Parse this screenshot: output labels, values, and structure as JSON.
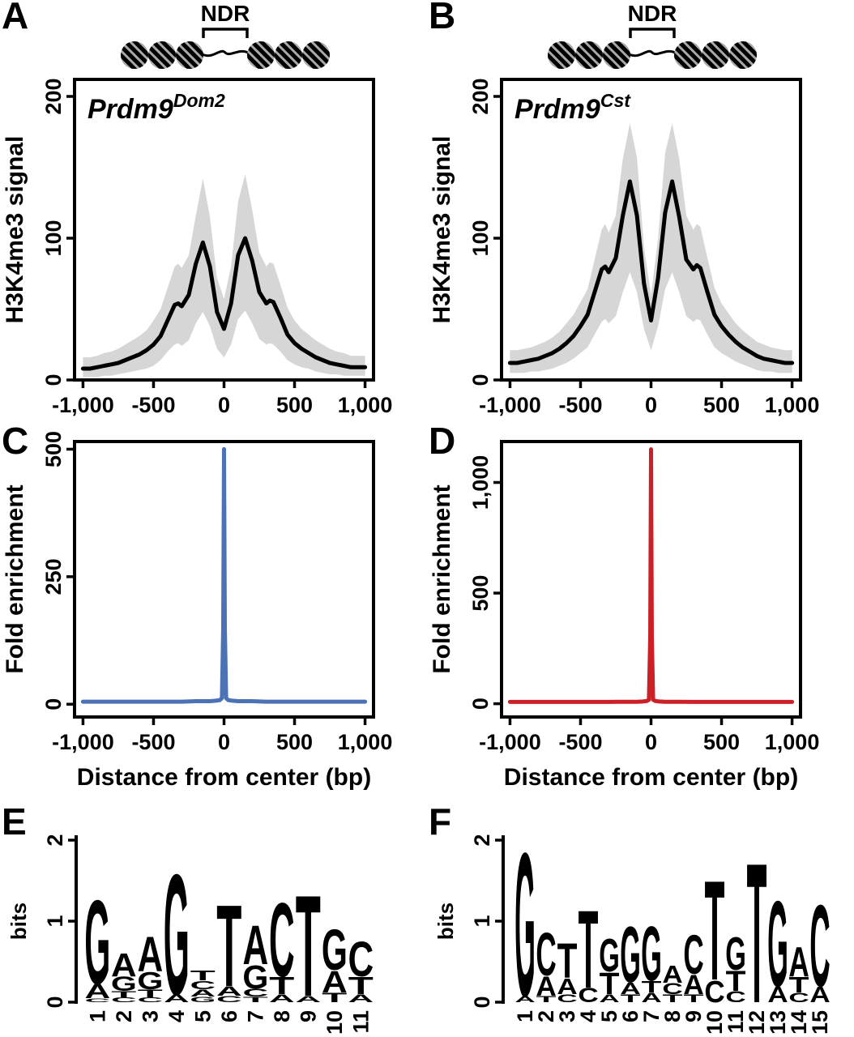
{
  "figure": {
    "panels": {
      "A": "A",
      "B": "B",
      "C": "C",
      "D": "D",
      "E": "E",
      "F": "F"
    },
    "ndr_label": "NDR"
  },
  "logo_colors": {
    "A": "#b3262a",
    "C": "#283c8f",
    "G": "#e9a63a",
    "T": "#3d8a41"
  },
  "chart_data": [
    {
      "panel": "A",
      "type": "line",
      "label": {
        "text": "Prdm9",
        "superscript": "Dom2",
        "color": "#4a72b4"
      },
      "ylabel": "H3K4me3 signal",
      "xlabel": "",
      "xlim": [
        -1060,
        1060
      ],
      "ylim": [
        0,
        212
      ],
      "xticks": [
        -1000,
        -500,
        0,
        500,
        1000
      ],
      "xtick_labels": [
        "-1,000",
        "-500",
        "0",
        "500",
        "1,000"
      ],
      "yticks": [
        0,
        100,
        200
      ],
      "ytick_labels": [
        "0",
        "100",
        "200"
      ],
      "line_color": "#000000",
      "band_color": "#d6d6d6",
      "x": [
        -1000,
        -950,
        -900,
        -850,
        -800,
        -750,
        -700,
        -650,
        -600,
        -550,
        -500,
        -450,
        -400,
        -350,
        -325,
        -300,
        -250,
        -200,
        -150,
        -100,
        -50,
        0,
        50,
        100,
        150,
        200,
        250,
        300,
        325,
        350,
        400,
        450,
        500,
        550,
        600,
        650,
        700,
        750,
        800,
        850,
        900,
        950,
        1000
      ],
      "mean": [
        8,
        8,
        9,
        10,
        11,
        12,
        14,
        16,
        18,
        21,
        25,
        31,
        42,
        53,
        54,
        52,
        60,
        82,
        97,
        80,
        48,
        36,
        54,
        88,
        100,
        84,
        62,
        54,
        56,
        55,
        44,
        32,
        26,
        22,
        19,
        16,
        14,
        12,
        11,
        10,
        9,
        9,
        9
      ],
      "upper": [
        16,
        16,
        17,
        19,
        20,
        22,
        25,
        28,
        31,
        35,
        42,
        50,
        65,
        80,
        82,
        79,
        88,
        116,
        142,
        115,
        72,
        57,
        80,
        126,
        145,
        120,
        90,
        80,
        83,
        82,
        67,
        51,
        42,
        36,
        32,
        28,
        25,
        22,
        20,
        19,
        17,
        17,
        17
      ],
      "lower": [
        2,
        2,
        2,
        3,
        3,
        4,
        5,
        6,
        7,
        8,
        10,
        14,
        20,
        25,
        26,
        24,
        28,
        40,
        48,
        38,
        22,
        16,
        25,
        43,
        49,
        40,
        29,
        25,
        26,
        25,
        20,
        14,
        11,
        9,
        8,
        6,
        5,
        4,
        4,
        3,
        3,
        3,
        3
      ]
    },
    {
      "panel": "B",
      "type": "line",
      "label": {
        "text": "Prdm9",
        "superscript": "Cst",
        "color": "#cc2027"
      },
      "ylabel": "H3K4me3 signal",
      "xlabel": "",
      "xlim": [
        -1060,
        1060
      ],
      "ylim": [
        0,
        212
      ],
      "xticks": [
        -1000,
        -500,
        0,
        500,
        1000
      ],
      "xtick_labels": [
        "-1,000",
        "-500",
        "0",
        "500",
        "1,000"
      ],
      "yticks": [
        0,
        100,
        200
      ],
      "ytick_labels": [
        "0",
        "100",
        "200"
      ],
      "line_color": "#000000",
      "band_color": "#d6d6d6",
      "x": [
        -1000,
        -950,
        -900,
        -850,
        -800,
        -750,
        -700,
        -650,
        -600,
        -550,
        -500,
        -450,
        -400,
        -350,
        -325,
        -300,
        -250,
        -200,
        -150,
        -100,
        -50,
        0,
        50,
        100,
        150,
        200,
        250,
        300,
        325,
        350,
        400,
        450,
        500,
        550,
        600,
        650,
        700,
        750,
        800,
        850,
        900,
        950,
        1000
      ],
      "mean": [
        12,
        12,
        13,
        14,
        15,
        17,
        19,
        22,
        26,
        31,
        38,
        46,
        62,
        78,
        80,
        76,
        86,
        116,
        140,
        116,
        68,
        42,
        72,
        118,
        140,
        115,
        85,
        78,
        81,
        79,
        62,
        46,
        38,
        32,
        27,
        23,
        20,
        17,
        15,
        14,
        13,
        12,
        12
      ],
      "upper": [
        21,
        21,
        22,
        23,
        25,
        27,
        30,
        34,
        40,
        46,
        55,
        64,
        85,
        106,
        110,
        104,
        116,
        156,
        181,
        157,
        94,
        60,
        100,
        160,
        181,
        156,
        116,
        106,
        110,
        108,
        86,
        65,
        54,
        47,
        40,
        35,
        31,
        27,
        25,
        23,
        22,
        21,
        21
      ],
      "lower": [
        5,
        5,
        5,
        6,
        6,
        7,
        8,
        10,
        12,
        15,
        19,
        23,
        32,
        41,
        43,
        40,
        45,
        62,
        76,
        62,
        36,
        21,
        38,
        64,
        76,
        62,
        45,
        41,
        43,
        42,
        32,
        23,
        19,
        16,
        13,
        11,
        9,
        7,
        6,
        6,
        5,
        5,
        5
      ]
    },
    {
      "panel": "C",
      "type": "line",
      "ylabel": "Fold enrichment",
      "xlabel": "Distance from center  (bp)",
      "xlim": [
        -1060,
        1060
      ],
      "ylim": [
        -25,
        515
      ],
      "xticks": [
        -1000,
        -500,
        0,
        500,
        1000
      ],
      "xtick_labels": [
        "-1,000",
        "-500",
        "0",
        "500",
        "1,000"
      ],
      "yticks": [
        0,
        250,
        500
      ],
      "ytick_labels": [
        "0",
        "250",
        "500"
      ],
      "line_color": "#4a72b4",
      "x": [
        -1000,
        -900,
        -800,
        -700,
        -600,
        -500,
        -400,
        -300,
        -200,
        -150,
        -100,
        -60,
        -30,
        -15,
        -6,
        0,
        6,
        15,
        30,
        60,
        100,
        150,
        200,
        300,
        400,
        500,
        600,
        700,
        800,
        900,
        1000
      ],
      "mean": [
        5,
        5,
        5,
        5,
        5,
        5,
        5,
        5,
        6,
        6,
        6,
        7,
        8,
        12,
        150,
        500,
        150,
        12,
        8,
        7,
        6,
        6,
        6,
        5,
        5,
        5,
        5,
        5,
        5,
        5,
        5
      ]
    },
    {
      "panel": "D",
      "type": "line",
      "ylabel": "Fold enrichment",
      "xlabel": "Distance from center (bp)",
      "xlim": [
        -1060,
        1060
      ],
      "ylim": [
        -60,
        1185
      ],
      "xticks": [
        -1000,
        -500,
        0,
        500,
        1000
      ],
      "xtick_labels": [
        "-1,000",
        "-500",
        "0",
        "500",
        "1,000"
      ],
      "yticks": [
        0,
        500,
        1000
      ],
      "ytick_labels": [
        "0",
        "500",
        "1,000"
      ],
      "line_color": "#cc2027",
      "x": [
        -1000,
        -900,
        -800,
        -700,
        -600,
        -500,
        -400,
        -300,
        -200,
        -150,
        -100,
        -60,
        -30,
        -15,
        -6,
        0,
        6,
        15,
        30,
        60,
        100,
        150,
        200,
        300,
        400,
        500,
        600,
        700,
        800,
        900,
        1000
      ],
      "mean": [
        8,
        8,
        8,
        8,
        8,
        8,
        8,
        8,
        9,
        9,
        9,
        10,
        12,
        18,
        300,
        1150,
        300,
        18,
        12,
        10,
        9,
        9,
        9,
        8,
        8,
        8,
        8,
        8,
        8,
        8,
        8
      ]
    },
    {
      "panel": "E",
      "type": "sequence_logo",
      "ylabel": "bits",
      "yticks": [
        0,
        1,
        2
      ],
      "positions": [
        {
          "pos": 1,
          "letters": [
            [
              "C",
              0.05
            ],
            [
              "A",
              0.18
            ],
            [
              "G",
              1.08
            ]
          ]
        },
        {
          "pos": 2,
          "letters": [
            [
              "C",
              0.06
            ],
            [
              "T",
              0.08
            ],
            [
              "G",
              0.18
            ],
            [
              "A",
              0.3
            ]
          ]
        },
        {
          "pos": 3,
          "letters": [
            [
              "C",
              0.06
            ],
            [
              "T",
              0.1
            ],
            [
              "G",
              0.22
            ],
            [
              "A",
              0.45
            ]
          ]
        },
        {
          "pos": 4,
          "letters": [
            [
              "A",
              0.1
            ],
            [
              "G",
              1.55
            ]
          ]
        },
        {
          "pos": 5,
          "letters": [
            [
              "G",
              0.07
            ],
            [
              "A",
              0.09
            ],
            [
              "C",
              0.11
            ],
            [
              "T",
              0.13
            ]
          ]
        },
        {
          "pos": 6,
          "letters": [
            [
              "C",
              0.08
            ],
            [
              "A",
              0.12
            ],
            [
              "T",
              1.05
            ]
          ]
        },
        {
          "pos": 7,
          "letters": [
            [
              "T",
              0.07
            ],
            [
              "C",
              0.1
            ],
            [
              "G",
              0.3
            ],
            [
              "A",
              0.5
            ]
          ]
        },
        {
          "pos": 8,
          "letters": [
            [
              "A",
              0.1
            ],
            [
              "T",
              0.22
            ],
            [
              "C",
              0.95
            ]
          ]
        },
        {
          "pos": 9,
          "letters": [
            [
              "A",
              0.08
            ],
            [
              "T",
              1.3
            ]
          ]
        },
        {
          "pos": 10,
          "letters": [
            [
              "T",
              0.12
            ],
            [
              "A",
              0.28
            ],
            [
              "G",
              0.52
            ]
          ]
        },
        {
          "pos": 11,
          "letters": [
            [
              "A",
              0.1
            ],
            [
              "T",
              0.22
            ],
            [
              "C",
              0.45
            ]
          ]
        }
      ]
    },
    {
      "panel": "F",
      "type": "sequence_logo",
      "ylabel": "bits",
      "yticks": [
        0,
        1,
        2
      ],
      "positions": [
        {
          "pos": 1,
          "letters": [
            [
              "A",
              0.08
            ],
            [
              "G",
              1.85
            ]
          ]
        },
        {
          "pos": 2,
          "letters": [
            [
              "T",
              0.08
            ],
            [
              "A",
              0.25
            ],
            [
              "C",
              0.55
            ]
          ]
        },
        {
          "pos": 3,
          "letters": [
            [
              "C",
              0.1
            ],
            [
              "A",
              0.2
            ],
            [
              "T",
              0.45
            ]
          ]
        },
        {
          "pos": 4,
          "letters": [
            [
              "C",
              0.18
            ],
            [
              "T",
              1.0
            ]
          ]
        },
        {
          "pos": 5,
          "letters": [
            [
              "A",
              0.1
            ],
            [
              "T",
              0.28
            ],
            [
              "G",
              0.42
            ]
          ]
        },
        {
          "pos": 6,
          "letters": [
            [
              "T",
              0.1
            ],
            [
              "A",
              0.15
            ],
            [
              "G",
              0.72
            ]
          ]
        },
        {
          "pos": 7,
          "letters": [
            [
              "A",
              0.12
            ],
            [
              "T",
              0.15
            ],
            [
              "G",
              0.7
            ]
          ]
        },
        {
          "pos": 8,
          "letters": [
            [
              "T",
              0.1
            ],
            [
              "C",
              0.14
            ],
            [
              "A",
              0.22
            ]
          ]
        },
        {
          "pos": 9,
          "letters": [
            [
              "T",
              0.1
            ],
            [
              "A",
              0.25
            ],
            [
              "C",
              0.5
            ]
          ]
        },
        {
          "pos": 10,
          "letters": [
            [
              "C",
              0.28
            ],
            [
              "T",
              1.28
            ]
          ]
        },
        {
          "pos": 11,
          "letters": [
            [
              "C",
              0.14
            ],
            [
              "T",
              0.26
            ],
            [
              "G",
              0.42
            ]
          ]
        },
        {
          "pos": 12,
          "letters": [
            [
              "T",
              1.8
            ]
          ]
        },
        {
          "pos": 13,
          "letters": [
            [
              "A",
              0.2
            ],
            [
              "G",
              1.1
            ]
          ]
        },
        {
          "pos": 14,
          "letters": [
            [
              "C",
              0.12
            ],
            [
              "T",
              0.2
            ],
            [
              "A",
              0.38
            ]
          ]
        },
        {
          "pos": 15,
          "letters": [
            [
              "A",
              0.2
            ],
            [
              "C",
              1.05
            ]
          ]
        }
      ]
    }
  ]
}
